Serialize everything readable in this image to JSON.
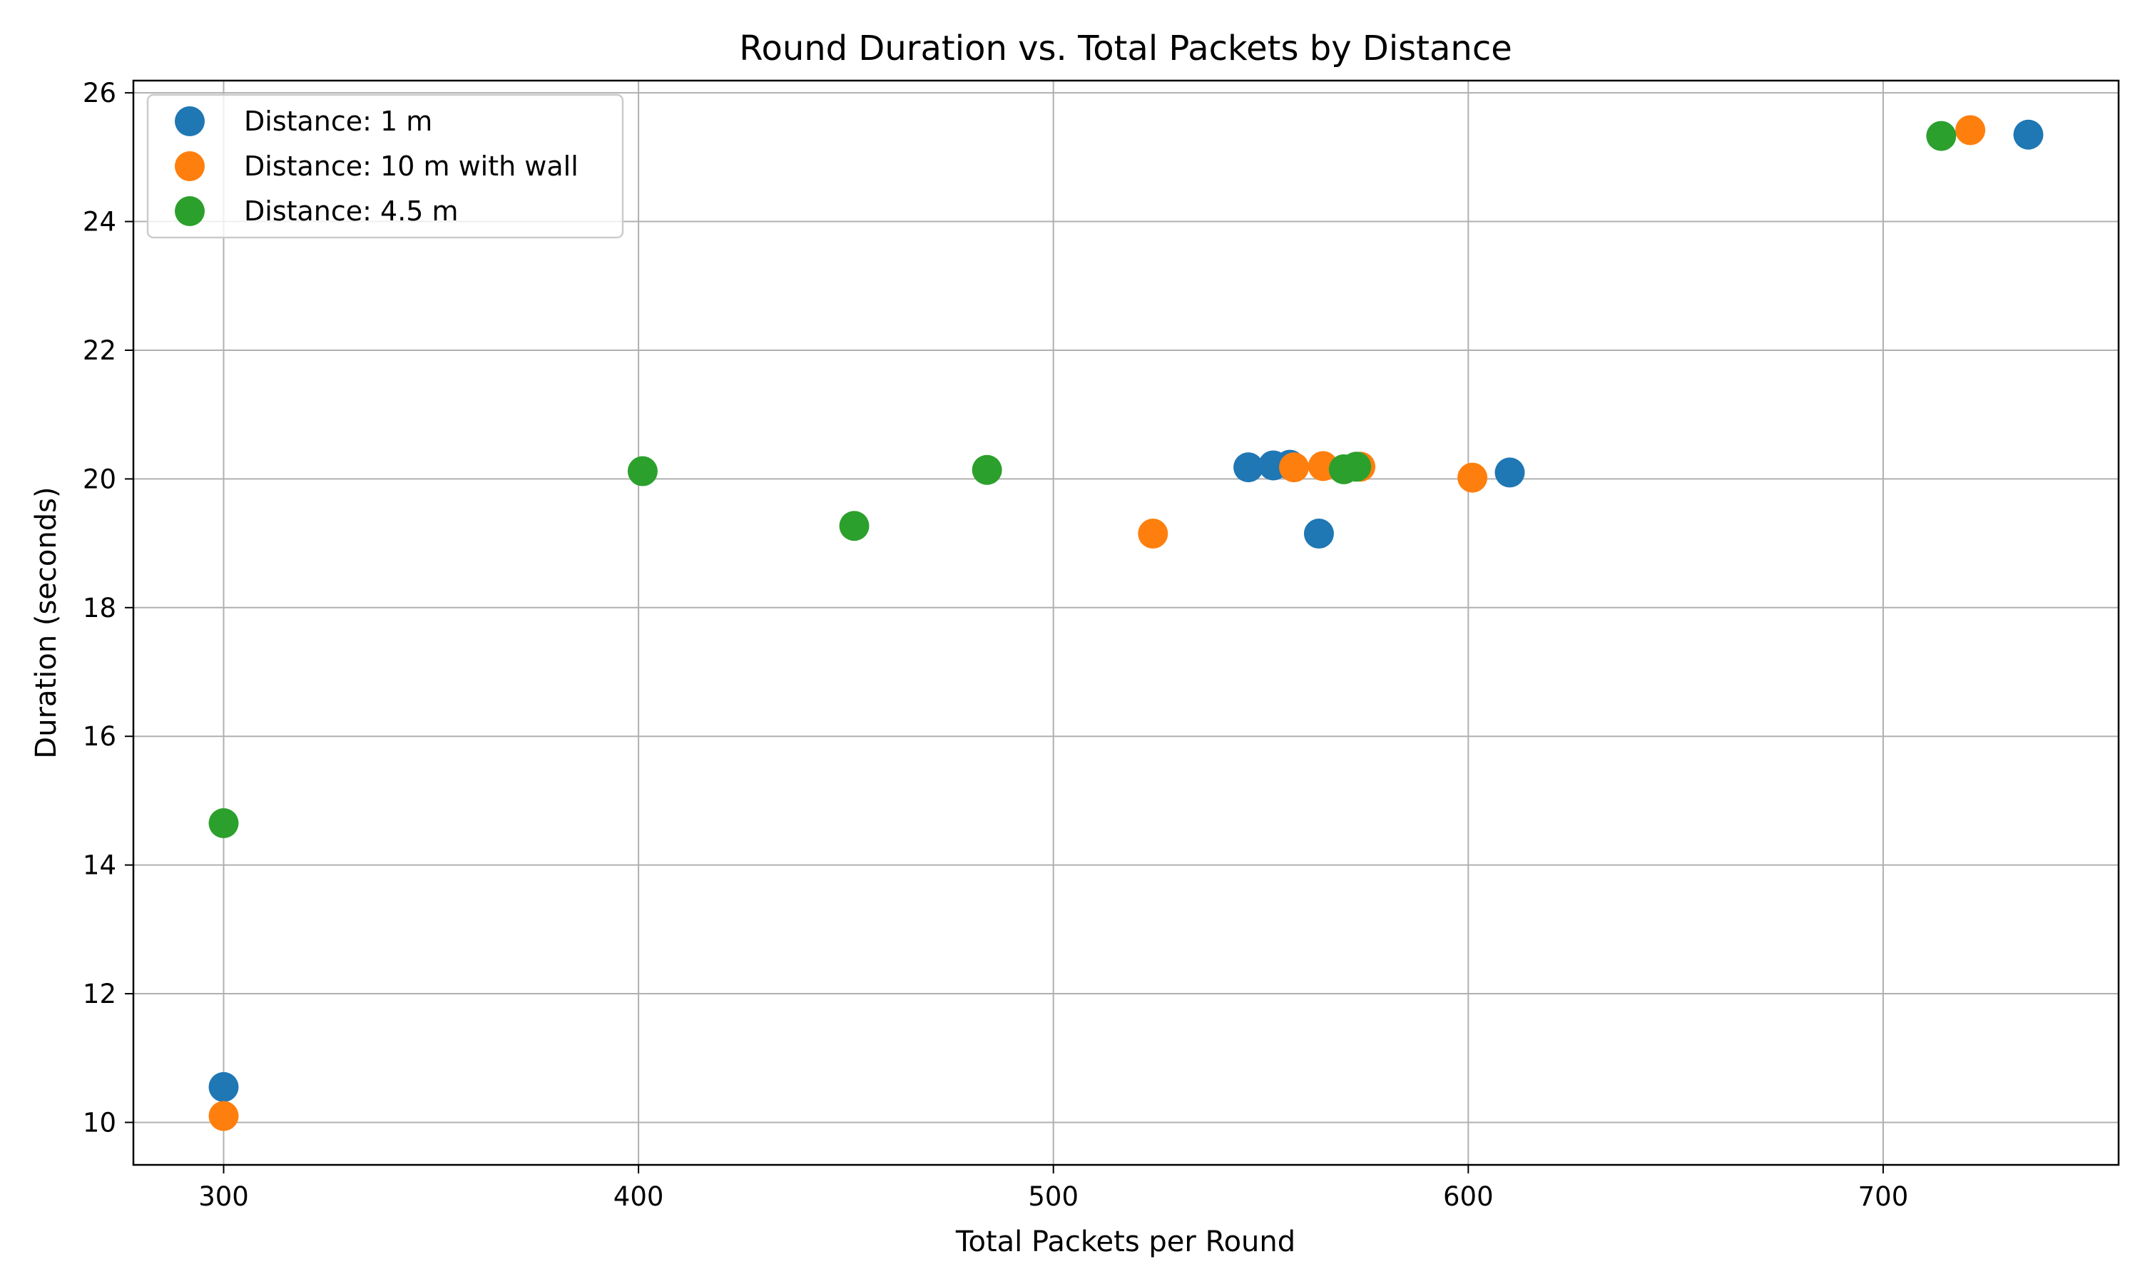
{
  "chart_data": {
    "type": "scatter",
    "title": "Round Duration vs. Total Packets by Distance",
    "xlabel": "Total Packets per Round",
    "ylabel": "Duration (seconds)",
    "xlim": [
      278.25,
      756.75
    ],
    "ylim": [
      9.34,
      26.19
    ],
    "x_ticks": [
      300,
      400,
      500,
      600,
      700
    ],
    "y_ticks": [
      10,
      12,
      14,
      16,
      18,
      20,
      22,
      24,
      26
    ],
    "grid": true,
    "legend_position": "upper-left",
    "series": [
      {
        "name": "Distance: 1 m",
        "color": "#1f77b4",
        "points": [
          {
            "x": 300,
            "y": 10.55
          },
          {
            "x": 547,
            "y": 20.18
          },
          {
            "x": 553,
            "y": 20.21
          },
          {
            "x": 557,
            "y": 20.22
          },
          {
            "x": 564,
            "y": 19.15
          },
          {
            "x": 610,
            "y": 20.1
          },
          {
            "x": 735,
            "y": 25.35
          }
        ]
      },
      {
        "name": "Distance: 10 m with wall",
        "color": "#ff7f0e",
        "points": [
          {
            "x": 300,
            "y": 10.1
          },
          {
            "x": 524,
            "y": 19.15
          },
          {
            "x": 558,
            "y": 20.18
          },
          {
            "x": 565,
            "y": 20.2
          },
          {
            "x": 574,
            "y": 20.19
          },
          {
            "x": 601,
            "y": 20.02
          },
          {
            "x": 721,
            "y": 25.42
          }
        ]
      },
      {
        "name": "Distance: 4.5 m",
        "color": "#2ca02c",
        "points": [
          {
            "x": 300,
            "y": 14.65
          },
          {
            "x": 401,
            "y": 20.12
          },
          {
            "x": 452,
            "y": 19.27
          },
          {
            "x": 484,
            "y": 20.14
          },
          {
            "x": 570,
            "y": 20.15
          },
          {
            "x": 573,
            "y": 20.19
          },
          {
            "x": 714,
            "y": 25.33
          }
        ]
      }
    ]
  }
}
